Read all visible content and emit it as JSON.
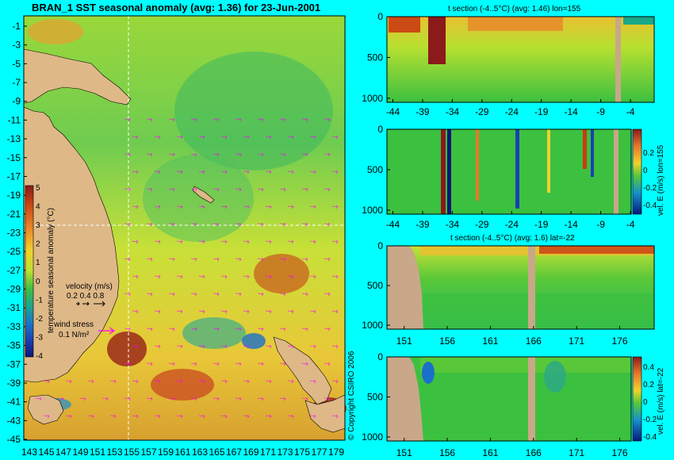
{
  "chart_data": [
    {
      "type": "heatmap",
      "title": "BRAN_1 SST seasonal anomaly (avg: 1.36) for 23-Jun-2001",
      "x_ticks": [
        "143",
        "145",
        "147",
        "149",
        "151",
        "153",
        "155",
        "157",
        "159",
        "161",
        "163",
        "165",
        "167",
        "169",
        "171",
        "173",
        "175",
        "177",
        "179"
      ],
      "y_ticks": [
        "-1",
        "-3",
        "-5",
        "-7",
        "-9",
        "-11",
        "-13",
        "-15",
        "-17",
        "-19",
        "-21",
        "-23",
        "-25",
        "-27",
        "-29",
        "-31",
        "-33",
        "-35",
        "-37",
        "-39",
        "-41",
        "-43",
        "-45"
      ],
      "xlim": [
        143,
        180
      ],
      "ylim": [
        -45,
        0
      ],
      "colorbar": {
        "label": "temperature seasonal anomaly (°C)",
        "ticks": [
          "5",
          "4",
          "3",
          "2",
          "1",
          "0",
          "-1",
          "-2",
          "-3",
          "-4"
        ],
        "range": [
          -4,
          5
        ]
      },
      "velocity_legend": {
        "title": "velocity (m/s)",
        "values": "0.2 0.4 0.8"
      },
      "wind_legend": {
        "title": "wind stress",
        "value": "0.1 N/m²"
      },
      "section_lines": {
        "lon": 155,
        "lat": -22
      },
      "copyright": "© Copyright CSIRO 2006"
    },
    {
      "type": "heatmap",
      "title": "t section (-4..5°C) (avg: 1.46) lon=155",
      "x_ticks": [
        "-44",
        "-39",
        "-34",
        "-29",
        "-24",
        "-19",
        "-14",
        "-9",
        "-4"
      ],
      "y_ticks": [
        "0",
        "500",
        "1000"
      ],
      "xlim": [
        -45,
        0
      ],
      "ylim": [
        1050,
        0
      ]
    },
    {
      "type": "heatmap",
      "title": "",
      "x_ticks": [
        "-44",
        "-39",
        "-34",
        "-29",
        "-24",
        "-19",
        "-14",
        "-9",
        "-4"
      ],
      "y_ticks": [
        "0",
        "500",
        "1000"
      ],
      "xlim": [
        -45,
        0
      ],
      "ylim": [
        1050,
        0
      ],
      "colorbar": {
        "label": "vel. E (m/s) lon=155",
        "ticks": [
          "0.2",
          "0",
          "-0.2",
          "-0.4"
        ],
        "range": [
          -0.4,
          0.4
        ]
      }
    },
    {
      "type": "heatmap",
      "title": "t section (-4..5°C) (avg: 1.6) lat=-22",
      "x_ticks": [
        "151",
        "156",
        "161",
        "166",
        "171",
        "176"
      ],
      "y_ticks": [
        "0",
        "500",
        "1000"
      ],
      "xlim": [
        149,
        180
      ],
      "ylim": [
        1050,
        0
      ]
    },
    {
      "type": "heatmap",
      "title": "",
      "x_ticks": [
        "151",
        "156",
        "161",
        "166",
        "171",
        "176"
      ],
      "y_ticks": [
        "0",
        "500",
        "1000"
      ],
      "xlim": [
        149,
        180
      ],
      "ylim": [
        1050,
        0
      ],
      "colorbar": {
        "label": "vel. E (m/s) lat=-22",
        "ticks": [
          "0.4",
          "0.2",
          "0",
          "-0.2",
          "-0.4"
        ],
        "range": [
          -0.4,
          0.4
        ]
      }
    }
  ]
}
